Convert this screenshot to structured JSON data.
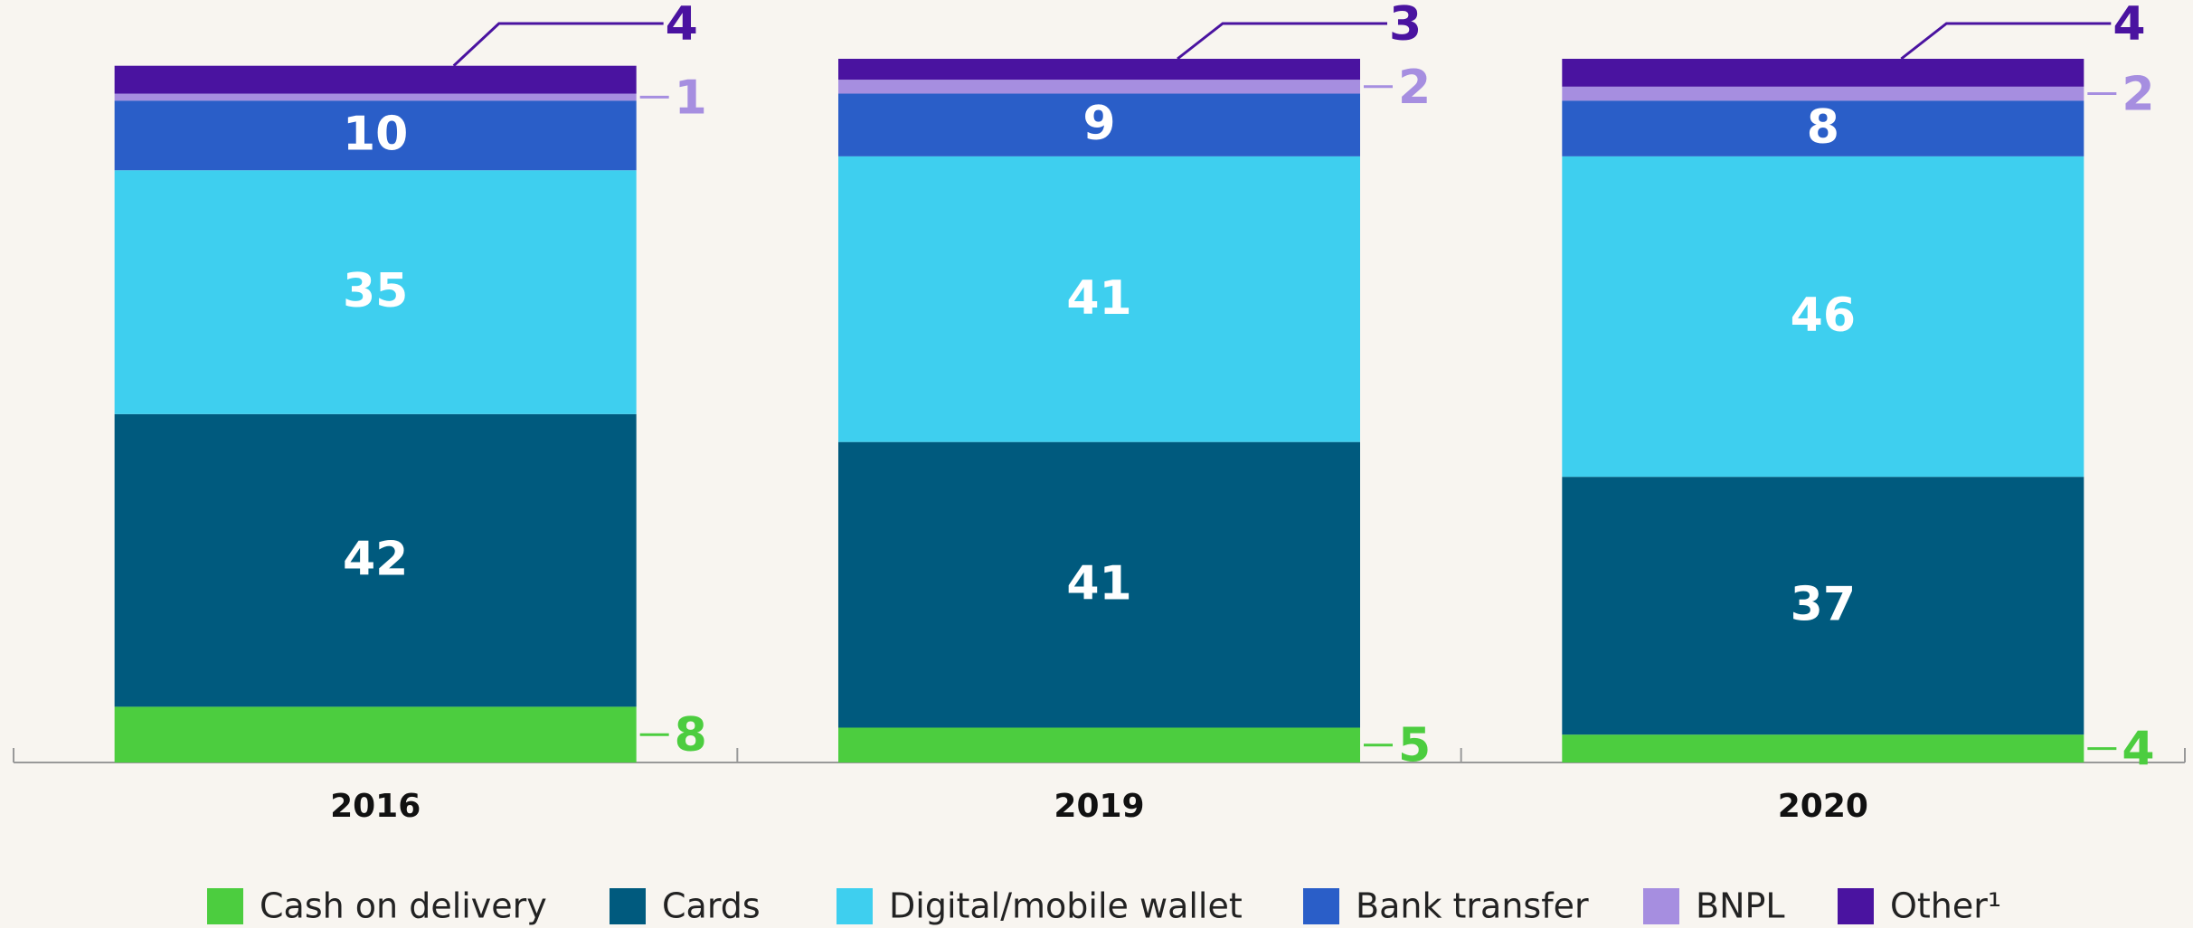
{
  "chart_data": {
    "type": "stacked_bar",
    "categories": [
      "2016",
      "2019",
      "2020"
    ],
    "series": [
      {
        "name": "Cash on delivery",
        "color": "#4ccd3f",
        "values": [
          8,
          5,
          4
        ]
      },
      {
        "name": "Cards",
        "color": "#005a7e",
        "values": [
          42,
          41,
          37
        ]
      },
      {
        "name": "Digital/mobile wallet",
        "color": "#3ecfef",
        "values": [
          35,
          41,
          46
        ]
      },
      {
        "name": "Bank transfer",
        "color": "#2a5ec8",
        "values": [
          10,
          9,
          8
        ]
      },
      {
        "name": "BNPL",
        "color": "#a68ee0",
        "values": [
          1,
          2,
          2
        ]
      },
      {
        "name": "Other¹",
        "color": "#4a13a0",
        "values": [
          4,
          3,
          4
        ]
      }
    ]
  }
}
